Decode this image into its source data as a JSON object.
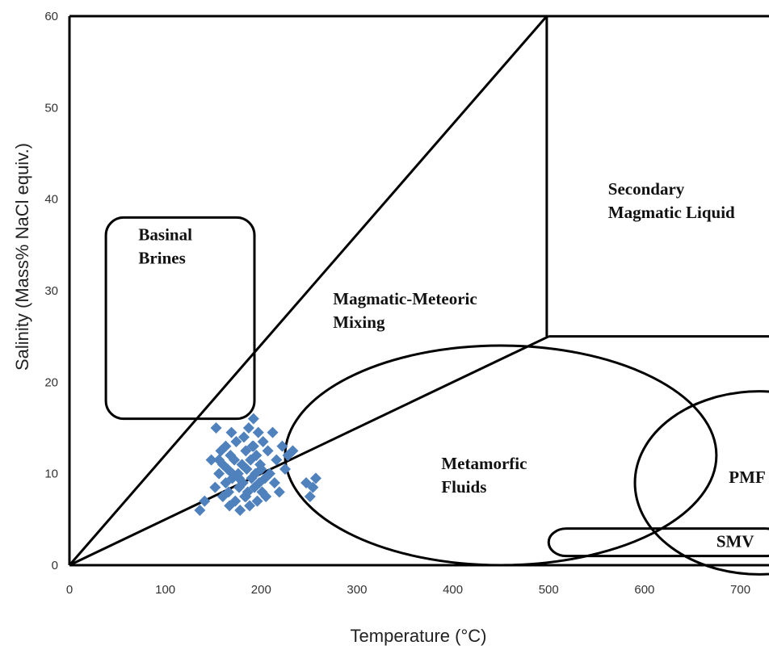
{
  "chart_data": {
    "type": "scatter",
    "title": "",
    "xlabel": "Temperature (°C)",
    "ylabel": "Salinity (Mass% NaCl equiv.)",
    "xlim": [
      0,
      740
    ],
    "ylim": [
      0,
      60
    ],
    "x_ticks": [
      "0",
      "100",
      "200",
      "300",
      "400",
      "500",
      "600",
      "700"
    ],
    "y_ticks": [
      "0",
      "10",
      "20",
      "30",
      "40",
      "50",
      "60"
    ],
    "grid": false,
    "legend": "none",
    "colors": {
      "points": "#4F81BD",
      "outlines": "#000000"
    },
    "regions": [
      {
        "label": [
          "Basinal",
          "Brines"
        ],
        "shape": "rounded-rectangle",
        "x_range": [
          38,
          193
        ],
        "y_range": [
          16,
          38
        ]
      },
      {
        "label": [
          "Magmatic-Meteoric",
          "Mixing"
        ],
        "shape": "wedge between line y = 0.12x and line y = 0.12x to x = 500"
      },
      {
        "label": [
          "Secondary",
          "Magmatic Liquid"
        ],
        "shape": "region x >= 500, y >= 25"
      },
      {
        "label": [
          "Metamorfic",
          "Fluids"
        ],
        "shape": "ellipse",
        "center": [
          450,
          12
        ],
        "radii": [
          225,
          12
        ]
      },
      {
        "label": [
          "PMF"
        ],
        "shape": "ellipse",
        "center": [
          720,
          9
        ],
        "radii": [
          130,
          10
        ]
      },
      {
        "label": [
          "SMV"
        ],
        "shape": "rounded-rectangle",
        "x_range": [
          500,
          745
        ],
        "y_range": [
          1,
          4
        ]
      }
    ],
    "boundary_lines": [
      {
        "from": [
          0,
          0
        ],
        "to": [
          498,
          60
        ]
      },
      {
        "from": [
          0,
          0
        ],
        "to": [
          500,
          25
        ]
      },
      {
        "from": [
          498,
          60
        ],
        "to": [
          498,
          25
        ]
      },
      {
        "from": [
          500,
          25
        ],
        "to": [
          745,
          25
        ]
      }
    ],
    "series": [
      {
        "marker": "diamond",
        "x": [
          136,
          141,
          148,
          152,
          153,
          156,
          158,
          160,
          160,
          163,
          163,
          165,
          166,
          167,
          168,
          169,
          170,
          172,
          173,
          174,
          176,
          177,
          178,
          180,
          181,
          182,
          183,
          184,
          185,
          186,
          187,
          188,
          189,
          190,
          191,
          192,
          193,
          194,
          195,
          196,
          197,
          198,
          199,
          200,
          201,
          202,
          204,
          205,
          207,
          209,
          212,
          214,
          216,
          219,
          222,
          225,
          228,
          233,
          247,
          251,
          254,
          257,
          170,
          177,
          184,
          192,
          156
        ],
        "y": [
          6.0,
          7.0,
          11.5,
          8.5,
          15.0,
          10.0,
          12.5,
          7.5,
          11.0,
          9.0,
          13.0,
          10.5,
          8.0,
          6.5,
          12.0,
          14.5,
          9.5,
          11.5,
          7.0,
          13.5,
          10.0,
          8.5,
          6.0,
          11.0,
          9.0,
          14.0,
          7.5,
          12.5,
          10.5,
          8.0,
          15.0,
          6.5,
          11.5,
          9.5,
          13.0,
          16.0,
          8.5,
          10.0,
          12.0,
          7.0,
          14.5,
          9.0,
          11.0,
          10.5,
          8.0,
          13.5,
          9.5,
          7.5,
          12.5,
          10.0,
          14.5,
          9.0,
          11.5,
          8.0,
          13.0,
          10.5,
          12.0,
          12.5,
          9.0,
          7.5,
          8.5,
          9.5,
          10.0,
          9.5,
          7.5,
          13.0,
          11.5
        ]
      }
    ]
  }
}
